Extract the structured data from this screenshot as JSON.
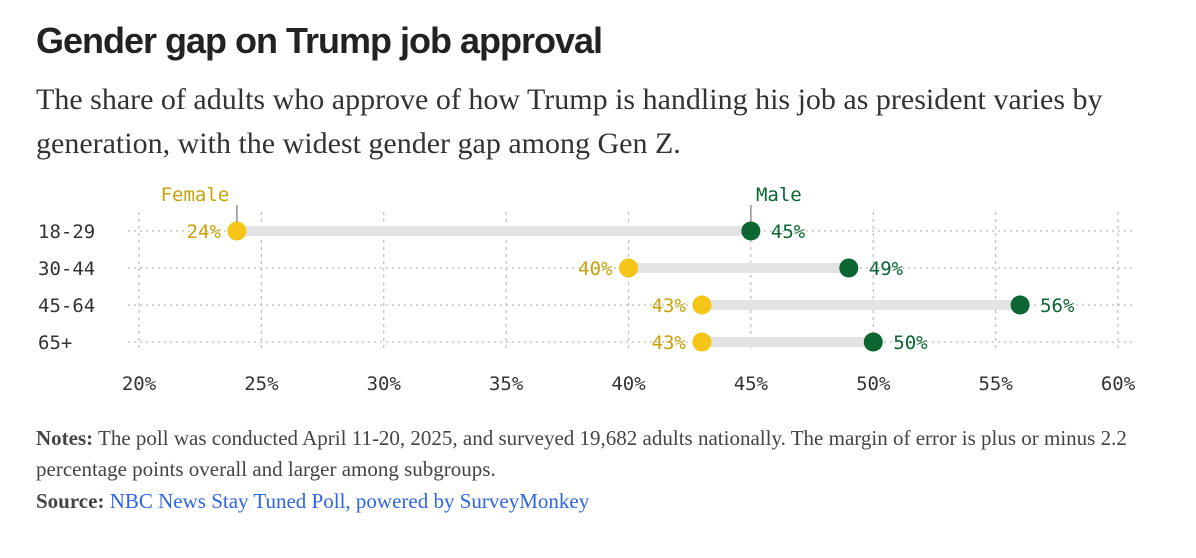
{
  "header": {
    "title": "Gender gap on Trump job approval",
    "subtitle": "The share of adults who approve of how Trump is handling his job as president varies by generation, with the widest gender gap among Gen Z."
  },
  "footer": {
    "notes_label": "Notes:",
    "notes_text": " The poll was conducted April 11-20, 2025, and surveyed 19,682 adults nationally. The margin of error is plus or minus 2.2 percentage points overall and larger among subgroups.",
    "source_label": "Source:",
    "source_text": "NBC News Stay Tuned Poll, powered by SurveyMonkey"
  },
  "colors": {
    "female": "#f5c518",
    "female_text": "#c9a20a",
    "male": "#0b6631",
    "male_text": "#0b6631",
    "connector": "#e3e3e3",
    "grid": "#bdbdbd",
    "axis_text": "#333333"
  },
  "chart_data": {
    "type": "scatter",
    "subtype": "dumbbell",
    "categories": [
      "18-29",
      "30-44",
      "45-64",
      "65+"
    ],
    "series": [
      {
        "name": "Female",
        "values": [
          24,
          40,
          43,
          43
        ],
        "labels": [
          "24%",
          "40%",
          "43%",
          "43%"
        ]
      },
      {
        "name": "Male",
        "values": [
          45,
          49,
          56,
          50
        ],
        "labels": [
          "45%",
          "49%",
          "56%",
          "50%"
        ]
      }
    ],
    "xlim": [
      20,
      60
    ],
    "xticks": [
      20,
      25,
      30,
      35,
      40,
      45,
      50,
      55,
      60
    ],
    "xtick_labels": [
      "20%",
      "25%",
      "30%",
      "35%",
      "40%",
      "45%",
      "50%",
      "55%",
      "60%"
    ],
    "grid": true
  }
}
